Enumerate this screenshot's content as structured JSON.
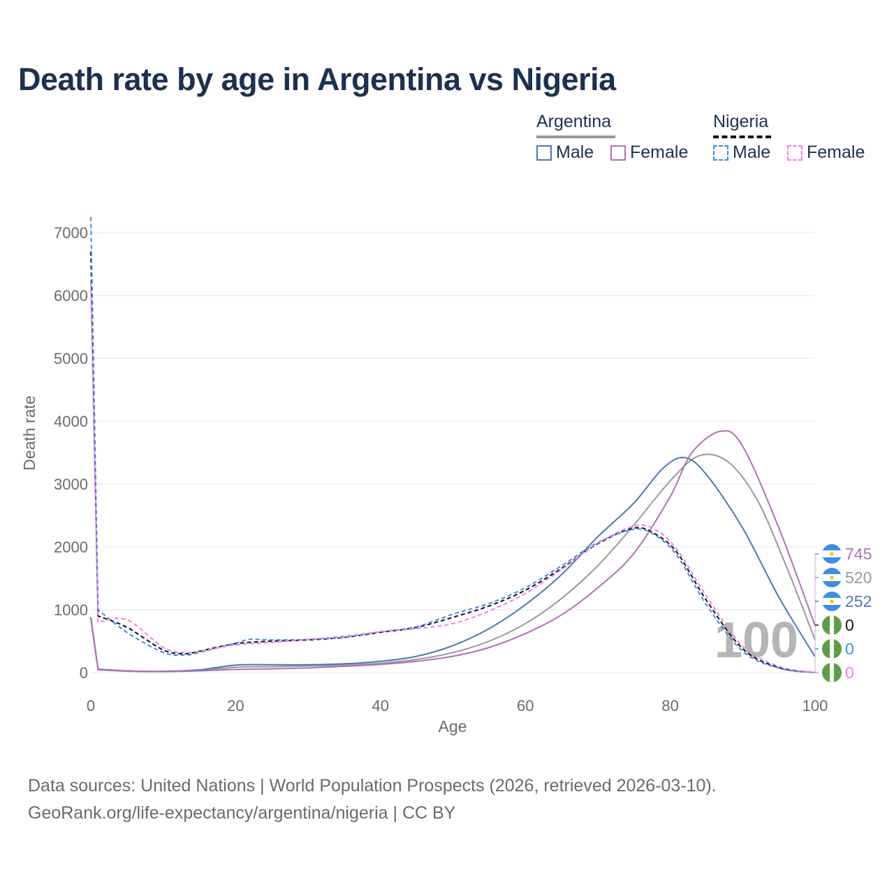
{
  "title": "Death rate by age in Argentina vs Nigeria",
  "legend": {
    "groups": [
      {
        "country": "Argentina",
        "style": "solid",
        "color": "#999999",
        "items": [
          {
            "label": "Male",
            "color": "#4a78b5"
          },
          {
            "label": "Female",
            "color": "#b070b5"
          }
        ]
      },
      {
        "country": "Nigeria",
        "style": "dashed",
        "color": "#111111",
        "items": [
          {
            "label": "Male",
            "color": "#3f8de8"
          },
          {
            "label": "Female",
            "color": "#f07de6"
          }
        ]
      }
    ]
  },
  "footer": {
    "line1": "Data sources: United Nations | World Population Prospects (2026, retrieved 2026-03-10).",
    "line2": "GeoRank.org/life-expectancy/argentina/nigeria | CC BY"
  },
  "chart_data": {
    "type": "line",
    "title": "Death rate by age in Argentina vs Nigeria",
    "xlabel": "Age",
    "ylabel": "Death rate",
    "xlim": [
      0,
      100
    ],
    "ylim": [
      0,
      7000
    ],
    "xticks": [
      0,
      20,
      40,
      60,
      80,
      100
    ],
    "yticks": [
      0,
      1000,
      2000,
      3000,
      4000,
      5000,
      6000,
      7000
    ],
    "grid": true,
    "age_marker": "100",
    "series": [
      {
        "name": "Argentina Total",
        "color": "#999999",
        "dash": false,
        "end_label": "520",
        "points": [
          [
            0,
            880
          ],
          [
            1,
            50
          ],
          [
            5,
            25
          ],
          [
            10,
            18
          ],
          [
            15,
            35
          ],
          [
            20,
            85
          ],
          [
            25,
            95
          ],
          [
            30,
            105
          ],
          [
            35,
            120
          ],
          [
            40,
            150
          ],
          [
            45,
            210
          ],
          [
            50,
            320
          ],
          [
            55,
            500
          ],
          [
            60,
            780
          ],
          [
            65,
            1180
          ],
          [
            70,
            1700
          ],
          [
            75,
            2350
          ],
          [
            80,
            3050
          ],
          [
            84,
            3450
          ],
          [
            88,
            3350
          ],
          [
            92,
            2750
          ],
          [
            96,
            1700
          ],
          [
            100,
            520
          ]
        ]
      },
      {
        "name": "Argentina Male",
        "color": "#4a78b5",
        "dash": false,
        "end_label": "252",
        "points": [
          [
            0,
            880
          ],
          [
            1,
            55
          ],
          [
            5,
            28
          ],
          [
            10,
            20
          ],
          [
            15,
            45
          ],
          [
            20,
            120
          ],
          [
            25,
            125
          ],
          [
            30,
            125
          ],
          [
            35,
            140
          ],
          [
            40,
            180
          ],
          [
            45,
            260
          ],
          [
            50,
            430
          ],
          [
            55,
            700
          ],
          [
            60,
            1080
          ],
          [
            65,
            1560
          ],
          [
            70,
            2160
          ],
          [
            75,
            2700
          ],
          [
            79,
            3250
          ],
          [
            82,
            3420
          ],
          [
            85,
            3150
          ],
          [
            90,
            2300
          ],
          [
            95,
            1200
          ],
          [
            100,
            252
          ]
        ]
      },
      {
        "name": "Argentina Female",
        "color": "#b070b5",
        "dash": false,
        "end_label": "745",
        "points": [
          [
            0,
            860
          ],
          [
            1,
            45
          ],
          [
            5,
            22
          ],
          [
            10,
            16
          ],
          [
            15,
            28
          ],
          [
            20,
            50
          ],
          [
            25,
            60
          ],
          [
            30,
            75
          ],
          [
            35,
            100
          ],
          [
            40,
            130
          ],
          [
            45,
            180
          ],
          [
            50,
            260
          ],
          [
            55,
            400
          ],
          [
            60,
            620
          ],
          [
            65,
            920
          ],
          [
            70,
            1350
          ],
          [
            75,
            1900
          ],
          [
            80,
            2800
          ],
          [
            83,
            3500
          ],
          [
            87,
            3840
          ],
          [
            90,
            3600
          ],
          [
            95,
            2300
          ],
          [
            100,
            745
          ]
        ]
      },
      {
        "name": "Nigeria Total",
        "color": "#111111",
        "dash": true,
        "end_label": "0",
        "points": [
          [
            0,
            6700
          ],
          [
            1,
            900
          ],
          [
            5,
            720
          ],
          [
            10,
            360
          ],
          [
            13,
            300
          ],
          [
            15,
            340
          ],
          [
            20,
            460
          ],
          [
            25,
            500
          ],
          [
            30,
            520
          ],
          [
            35,
            560
          ],
          [
            40,
            640
          ],
          [
            45,
            720
          ],
          [
            50,
            880
          ],
          [
            55,
            1060
          ],
          [
            60,
            1310
          ],
          [
            65,
            1660
          ],
          [
            70,
            2050
          ],
          [
            75,
            2300
          ],
          [
            78,
            2200
          ],
          [
            81,
            1900
          ],
          [
            85,
            1150
          ],
          [
            90,
            380
          ],
          [
            95,
            80
          ],
          [
            100,
            0
          ]
        ]
      },
      {
        "name": "Nigeria Male",
        "color": "#3f8de8",
        "dash": true,
        "end_label": "0",
        "points": [
          [
            0,
            7250
          ],
          [
            1,
            1000
          ],
          [
            5,
            640
          ],
          [
            10,
            320
          ],
          [
            13,
            280
          ],
          [
            15,
            320
          ],
          [
            20,
            470
          ],
          [
            22,
            530
          ],
          [
            25,
            520
          ],
          [
            30,
            530
          ],
          [
            35,
            560
          ],
          [
            40,
            650
          ],
          [
            45,
            730
          ],
          [
            50,
            930
          ],
          [
            55,
            1100
          ],
          [
            60,
            1350
          ],
          [
            65,
            1700
          ],
          [
            70,
            2070
          ],
          [
            75,
            2280
          ],
          [
            78,
            2180
          ],
          [
            81,
            1850
          ],
          [
            85,
            1080
          ],
          [
            90,
            340
          ],
          [
            95,
            70
          ],
          [
            100,
            0
          ]
        ]
      },
      {
        "name": "Nigeria Female",
        "color": "#f07de6",
        "dash": true,
        "end_label": "0",
        "points": [
          [
            0,
            6200
          ],
          [
            1,
            800
          ],
          [
            5,
            840
          ],
          [
            10,
            400
          ],
          [
            13,
            320
          ],
          [
            15,
            340
          ],
          [
            20,
            440
          ],
          [
            25,
            480
          ],
          [
            30,
            530
          ],
          [
            35,
            580
          ],
          [
            40,
            650
          ],
          [
            45,
            700
          ],
          [
            50,
            780
          ],
          [
            55,
            980
          ],
          [
            60,
            1260
          ],
          [
            65,
            1640
          ],
          [
            70,
            2060
          ],
          [
            75,
            2330
          ],
          [
            78,
            2270
          ],
          [
            81,
            1950
          ],
          [
            85,
            1220
          ],
          [
            90,
            420
          ],
          [
            95,
            100
          ],
          [
            100,
            0
          ]
        ]
      }
    ],
    "end_markers": [
      {
        "flag": "argentina",
        "label": "745",
        "color": "#b070b5"
      },
      {
        "flag": "argentina",
        "label": "520",
        "color": "#999999"
      },
      {
        "flag": "argentina",
        "label": "252",
        "color": "#4a78b5"
      },
      {
        "flag": "nigeria",
        "label": "0",
        "color": "#111111"
      },
      {
        "flag": "nigeria",
        "label": "0",
        "color": "#3f8de8"
      },
      {
        "flag": "nigeria",
        "label": "0",
        "color": "#f07de6"
      }
    ],
    "flag_colors": {
      "argentina": [
        "#3d8ee0",
        "#ffffff",
        "#f2c500"
      ],
      "nigeria": [
        "#5c9e46",
        "#ffffff"
      ]
    }
  }
}
